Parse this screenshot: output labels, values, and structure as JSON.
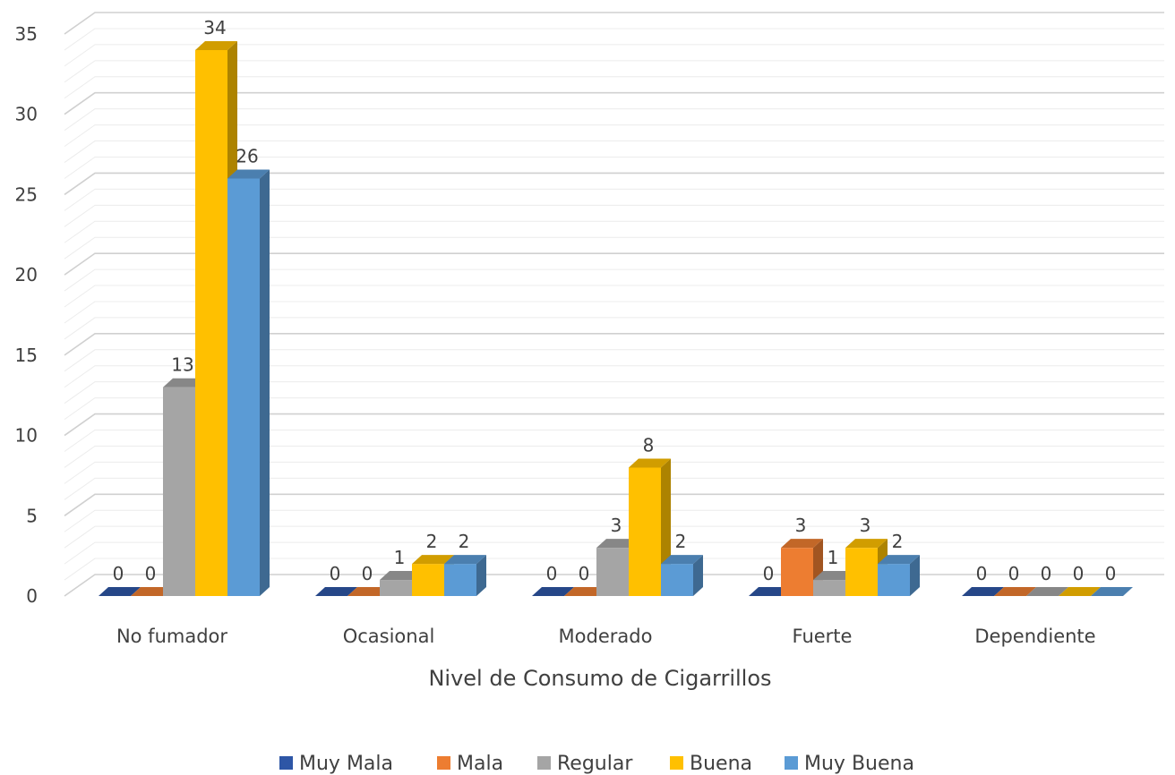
{
  "chart_data": {
    "type": "bar",
    "xlabel": "Nivel de Consumo de Cigarrillos",
    "ylabel": "",
    "ylim": [
      0,
      35
    ],
    "yticks": [
      0,
      5,
      10,
      15,
      20,
      25,
      30,
      35
    ],
    "grid": true,
    "legend_position": "bottom",
    "categories": [
      "No fumador",
      "Ocasional",
      "Moderado",
      "Fuerte",
      "Dependiente"
    ],
    "series": [
      {
        "name": "Muy Mala",
        "color": "#2E56A6",
        "values": [
          0,
          0,
          0,
          0,
          0
        ]
      },
      {
        "name": "Mala",
        "color": "#ED7D31",
        "values": [
          0,
          0,
          0,
          3,
          0
        ]
      },
      {
        "name": "Regular",
        "color": "#A5A5A5",
        "values": [
          13,
          1,
          3,
          1,
          0
        ]
      },
      {
        "name": "Buena",
        "color": "#FFC000",
        "values": [
          34,
          2,
          8,
          3,
          0
        ]
      },
      {
        "name": "Muy Buena",
        "color": "#5B9BD5",
        "values": [
          26,
          2,
          2,
          2,
          0
        ]
      }
    ]
  }
}
